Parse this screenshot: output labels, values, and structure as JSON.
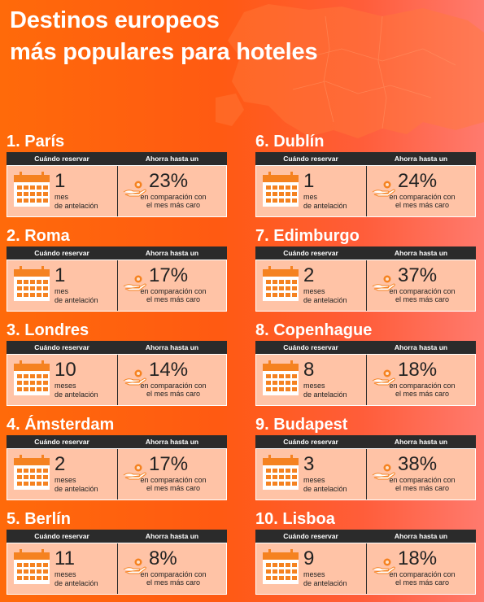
{
  "title": {
    "line1": "Destinos europeos",
    "line2": "más populares para hoteles"
  },
  "header_labels": {
    "when": "Cuándo reservar",
    "save": "Ahorra hasta un"
  },
  "comparison_label": {
    "line1": "en comparación con",
    "line2": "el mes más caro"
  },
  "colors": {
    "background": "#ff5a12",
    "panel": "#ffc3a6",
    "header_bar": "#2b2b2b",
    "icon": "#f58220"
  },
  "destinations": [
    {
      "heading": "1. París",
      "months": "1",
      "unit_line1": "mes",
      "unit_line2": "de antelación",
      "saving": "23%"
    },
    {
      "heading": "2. Roma",
      "months": "1",
      "unit_line1": "mes",
      "unit_line2": "de antelación",
      "saving": "17%"
    },
    {
      "heading": "3. Londres",
      "months": "10",
      "unit_line1": "meses",
      "unit_line2": "de antelación",
      "saving": "14%"
    },
    {
      "heading": "4. Ámsterdam",
      "months": "2",
      "unit_line1": "meses",
      "unit_line2": "de antelación",
      "saving": "17%"
    },
    {
      "heading": "5. Berlín",
      "months": "11",
      "unit_line1": "meses",
      "unit_line2": "de antelación",
      "saving": "8%"
    },
    {
      "heading": "6. Dublín",
      "months": "1",
      "unit_line1": "mes",
      "unit_line2": "de antelación",
      "saving": "24%"
    },
    {
      "heading": "7. Edimburgo",
      "months": "2",
      "unit_line1": "meses",
      "unit_line2": "de antelación",
      "saving": "37%"
    },
    {
      "heading": "8. Copenhague",
      "months": "8",
      "unit_line1": "meses",
      "unit_line2": "de antelación",
      "saving": "18%"
    },
    {
      "heading": "9. Budapest",
      "months": "3",
      "unit_line1": "meses",
      "unit_line2": "de antelación",
      "saving": "38%"
    },
    {
      "heading": "10. Lisboa",
      "months": "9",
      "unit_line1": "meses",
      "unit_line2": "de antelación",
      "saving": "18%"
    }
  ]
}
